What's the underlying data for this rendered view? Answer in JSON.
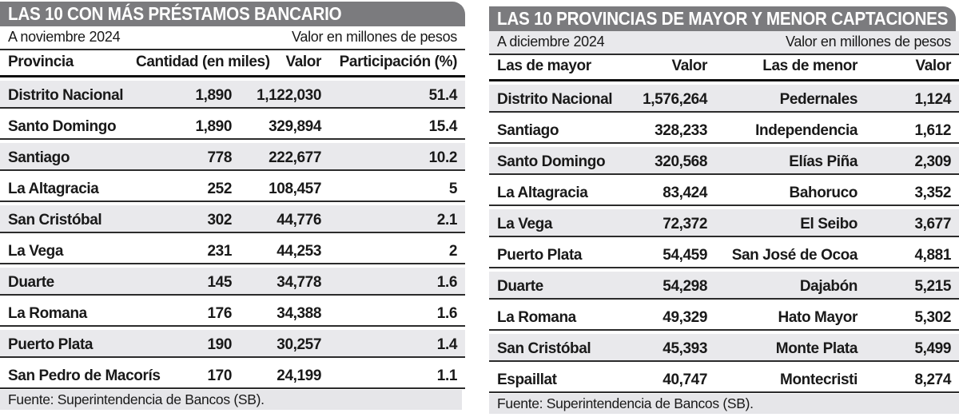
{
  "colors": {
    "bar-gray": "#7b7b7e",
    "stripe-gray": "#e9e9ec",
    "src-gray": "#e6e6e9",
    "ink": "#191919",
    "rule": "#2b2b2b"
  },
  "chart_data": [
    {
      "type": "table",
      "title": "LAS 10  CON MÁS PRÉSTAMOS BANCARIO",
      "period": "A noviembre 2024",
      "unit_note": "Valor en millones de pesos",
      "columns": [
        "Provincia",
        "Cantidad (en miles)",
        "Valor",
        "Participación (%)"
      ],
      "rows": [
        [
          "Distrito Nacional",
          "1,890",
          "1,122,030",
          "51.4"
        ],
        [
          "Santo Domingo",
          "1,890",
          "329,894",
          "15.4"
        ],
        [
          "Santiago",
          "778",
          "222,677",
          "10.2"
        ],
        [
          "La Altagracia",
          "252",
          "108,457",
          "5"
        ],
        [
          "San Cristóbal",
          "302",
          "44,776",
          "2.1"
        ],
        [
          "La Vega",
          "231",
          "44,253",
          "2"
        ],
        [
          "Duarte",
          "145",
          "34,778",
          "1.6"
        ],
        [
          "La Romana",
          "176",
          "34,388",
          "1.6"
        ],
        [
          "Puerto Plata",
          "190",
          "30,257",
          "1.4"
        ],
        [
          "San Pedro de Macorís",
          "170",
          "24,199",
          "1.1"
        ]
      ],
      "source": "Fuente: Superintendencia de Bancos (SB)."
    },
    {
      "type": "table",
      "title": "LAS 10 PROVINCIAS DE MAYOR Y MENOR CAPTACIONES",
      "period": "A diciembre 2024",
      "unit_note": "Valor en millones de pesos",
      "columns": [
        "Las de mayor",
        "Valor",
        "Las de menor",
        "Valor"
      ],
      "rows": [
        [
          "Distrito Nacional",
          "1,576,264",
          "Pedernales",
          "1,124"
        ],
        [
          "Santiago",
          "328,233",
          "Independencia",
          "1,612"
        ],
        [
          "Santo Domingo",
          "320,568",
          "Elías Piña",
          "2,309"
        ],
        [
          "La Altagracia",
          "83,424",
          "Bahoruco",
          "3,352"
        ],
        [
          "La Vega",
          "72,372",
          "El Seibo",
          "3,677"
        ],
        [
          "Puerto Plata",
          "54,459",
          "San José de Ocoa",
          "4,881"
        ],
        [
          "Duarte",
          "54,298",
          "Dajabón",
          "5,215"
        ],
        [
          "La Romana",
          "49,329",
          "Hato Mayor",
          "5,302"
        ],
        [
          "San Cristóbal",
          "45,393",
          "Monte Plata",
          "5,499"
        ],
        [
          "Espaillat",
          "40,747",
          "Montecristi",
          "8,274"
        ]
      ],
      "source": "Fuente: Superintendencia de Bancos (SB)."
    }
  ]
}
